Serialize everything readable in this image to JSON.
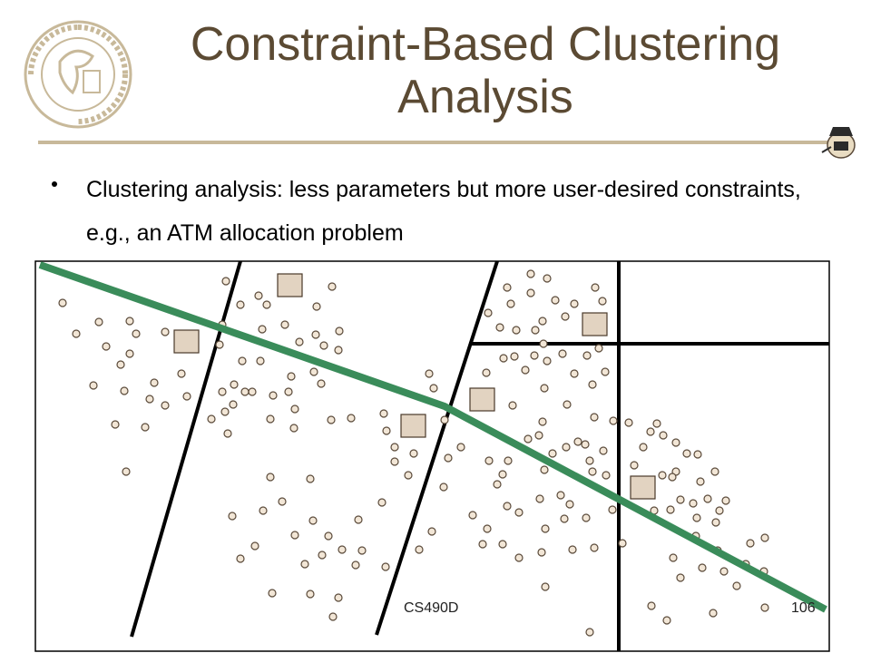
{
  "slide": {
    "title": "Constraint-Based Clustering Analysis",
    "bullet": "Clustering analysis: less parameters but more user-desired constraints, e.g., an ATM allocation problem",
    "footer_course": "CS490D",
    "footer_page": "106"
  },
  "logo": {
    "text": "purdue university",
    "color": "#c8b99a"
  },
  "colors": {
    "title": "#5b4a33",
    "rule": "#c8b99a",
    "path": "#3a8c5a",
    "dot_fill": "#f2e6d6",
    "dot_stroke": "#5a4a3a",
    "atm_fill": "#e2d3c1",
    "atm_stroke": "#4a3a2a",
    "boundary": "#000000"
  }
}
